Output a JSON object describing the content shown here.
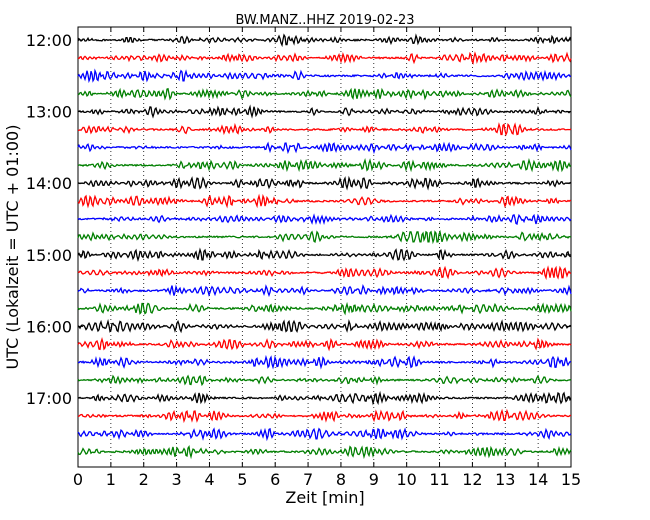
{
  "chart_data": {
    "type": "line",
    "title": "BW.MANZ..HHZ 2019-02-23",
    "xlabel": "Zeit  [min]",
    "ylabel": "UTC (Lokalzeit = UTC + 01:00)",
    "xlim": [
      0,
      15
    ],
    "x_ticks": [
      "0",
      "1",
      "2",
      "3",
      "4",
      "5",
      "6",
      "7",
      "8",
      "9",
      "10",
      "11",
      "12",
      "13",
      "14",
      "15"
    ],
    "row_start_times": [
      "12:00",
      "12:15",
      "12:30",
      "12:45",
      "13:00",
      "13:15",
      "13:30",
      "13:45",
      "14:00",
      "14:15",
      "14:30",
      "14:45",
      "15:00",
      "15:15",
      "15:30",
      "15:45",
      "16:00",
      "16:15",
      "16:30",
      "16:45",
      "17:00",
      "17:15",
      "17:30",
      "17:45"
    ],
    "y_tick_labels": [
      "12:00",
      "13:00",
      "14:00",
      "15:00",
      "16:00",
      "17:00"
    ],
    "row_colors": [
      "#000000",
      "#ff0000",
      "#0000ff",
      "#007f00"
    ],
    "vertical_grid": "dotted, every minute",
    "legend": "none"
  }
}
